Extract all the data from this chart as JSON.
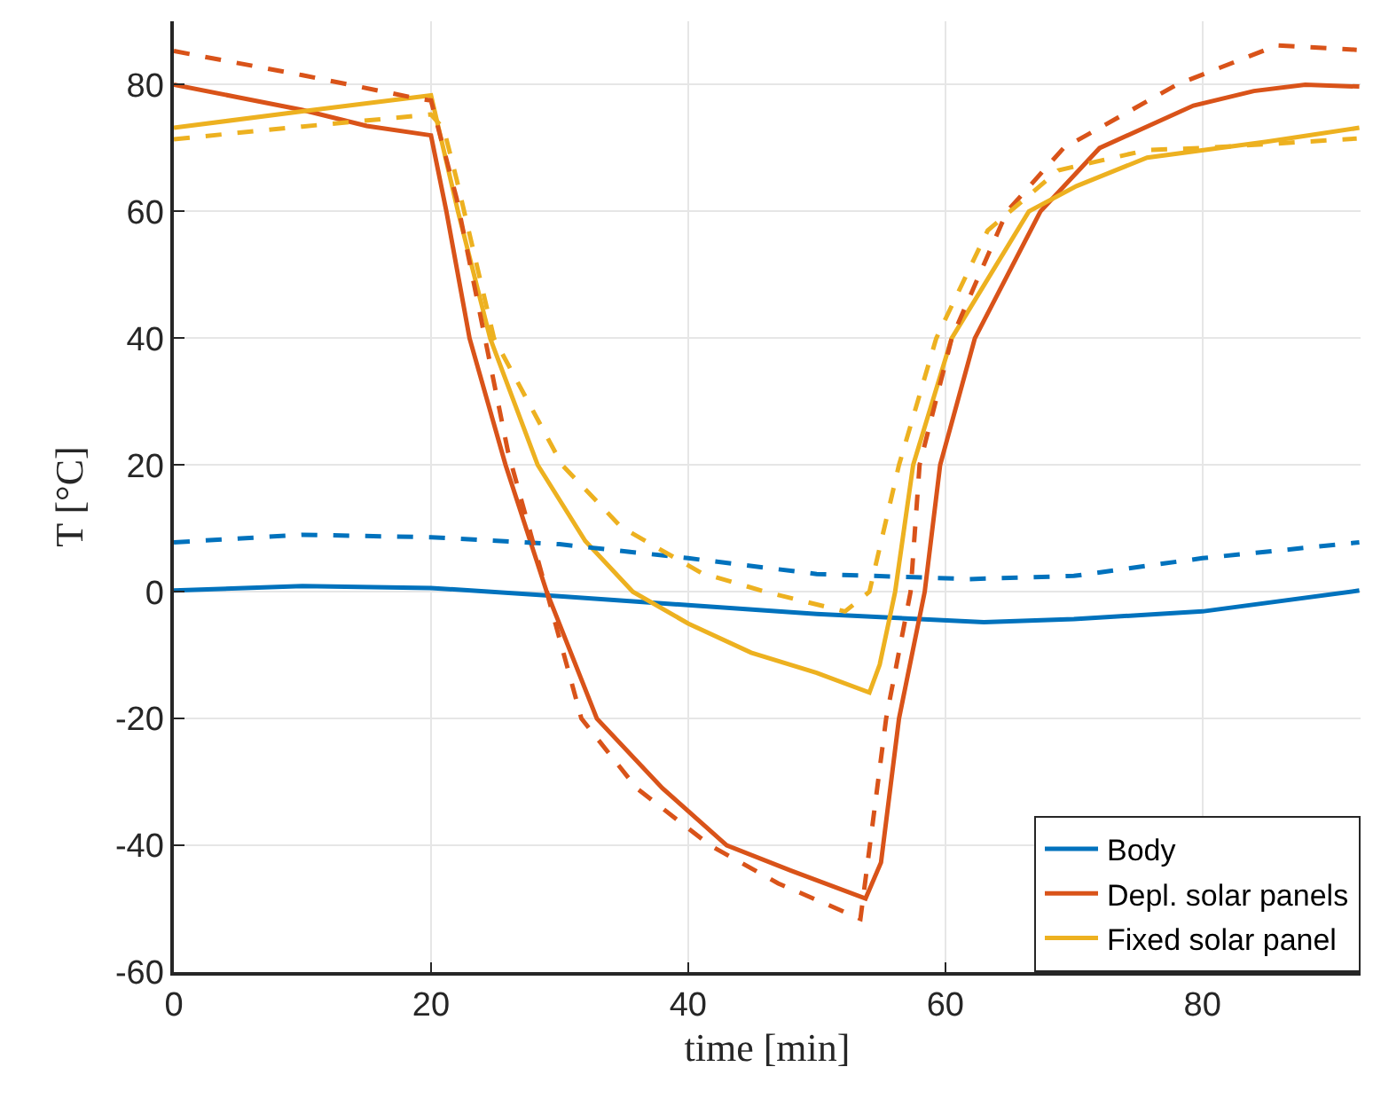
{
  "chart_data": {
    "type": "line",
    "xlabel": "time [min]",
    "ylabel": "T [°C]",
    "xlim": [
      0,
      92.3
    ],
    "ylim": [
      -60,
      90
    ],
    "xticks": [
      0,
      20,
      40,
      60,
      80
    ],
    "yticks": [
      -60,
      -40,
      -20,
      0,
      20,
      40,
      60,
      80
    ],
    "grid": true,
    "legend": "bottom right",
    "marker": "none",
    "series": [
      {
        "name": "Body",
        "color": "#0072bd",
        "line_style": "solid",
        "x": [
          0,
          10,
          20,
          30,
          40,
          50,
          63,
          70,
          80,
          92.2
        ],
        "values": [
          0.2,
          0.9,
          0.6,
          -0.7,
          -2.1,
          -3.5,
          -4.8,
          -4.3,
          -3.1,
          0.2
        ]
      },
      {
        "name": "Depl. solar panels",
        "color": "#d95319",
        "line_style": "solid",
        "x": [
          0,
          5,
          10,
          15,
          20,
          21.2,
          23,
          25.8,
          29,
          32.9,
          38,
          43,
          48,
          53.8,
          55,
          56.4,
          58.4,
          59.6,
          62.3,
          67.4,
          72,
          79.3,
          84,
          88,
          92.2
        ],
        "values": [
          80,
          78,
          76,
          73.5,
          72,
          60,
          40,
          20,
          0,
          -20,
          -31,
          -40,
          -44,
          -48.4,
          -42.7,
          -20,
          0,
          20,
          40,
          60,
          70,
          76.7,
          79,
          80,
          79.7
        ]
      },
      {
        "name": "Fixed solar panel",
        "color": "#edb120",
        "line_style": "solid",
        "x": [
          0,
          10,
          20,
          22.1,
          24.6,
          28.3,
          32,
          35.7,
          40,
          44.9,
          50,
          54.1,
          54.9,
          56.1,
          57.5,
          60.5,
          66.5,
          70.2,
          75.7,
          85,
          92.2
        ],
        "values": [
          73.2,
          75.8,
          78.3,
          60,
          40,
          20,
          8,
          0,
          -5,
          -9.6,
          -12.8,
          -15.9,
          -11.5,
          0,
          20,
          40,
          60,
          64,
          68.5,
          71,
          73.2
        ]
      },
      {
        "color": "#0072bd",
        "line_style": "dashed",
        "x": [
          0,
          10,
          20,
          30,
          40,
          50,
          61.9,
          70,
          80,
          92.2
        ],
        "values": [
          7.8,
          9,
          8.6,
          7.5,
          5.3,
          2.8,
          2.0,
          2.5,
          5.3,
          7.8
        ]
      },
      {
        "color": "#d95319",
        "line_style": "dashed",
        "x": [
          0,
          10,
          19,
          20,
          22,
          24,
          26,
          29,
          31.7,
          36,
          41.7,
          47,
          53.4,
          55.4,
          57.3,
          58,
          60.5,
          64.8,
          69.2,
          78,
          85.8,
          92
        ],
        "values": [
          85.3,
          81.5,
          77.8,
          77.5,
          62,
          42,
          22,
          0,
          -20,
          -31,
          -40,
          -46,
          -51.6,
          -20,
          0,
          20,
          40,
          60,
          70,
          80,
          86.2,
          85.5
        ]
      },
      {
        "color": "#edb120",
        "line_style": "dashed",
        "x": [
          0,
          10,
          20,
          21,
          22,
          24.9,
          30.2,
          34.8,
          41,
          46,
          52.2,
          54.1,
          56.4,
          59.3,
          63.3,
          68.8,
          75.7,
          80,
          92
        ],
        "values": [
          71.4,
          73.4,
          75.3,
          73,
          65,
          40,
          20,
          10.2,
          3,
          0,
          -3.1,
          0,
          20,
          40,
          57,
          66.5,
          69.7,
          70,
          71.5
        ]
      }
    ]
  }
}
